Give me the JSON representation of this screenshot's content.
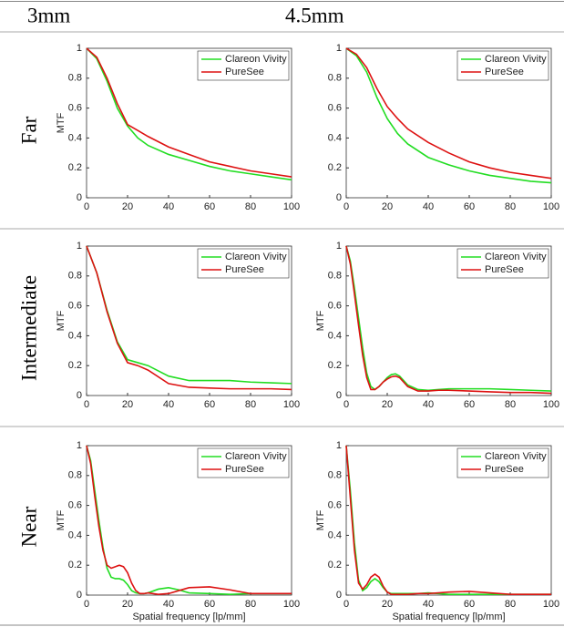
{
  "columns": [
    "3mm",
    "4.5mm"
  ],
  "rows": [
    "Far",
    "Intermediate",
    "Near"
  ],
  "chart_data": [
    {
      "type": "line",
      "ylabel": "MTF",
      "x": [
        0,
        5,
        10,
        15,
        20,
        25,
        30,
        40,
        50,
        60,
        70,
        80,
        90,
        100
      ],
      "series": [
        {
          "name": "Clareon Vivity",
          "color": "#22dd22",
          "values": [
            1,
            0.93,
            0.78,
            0.6,
            0.48,
            0.4,
            0.35,
            0.29,
            0.25,
            0.21,
            0.18,
            0.16,
            0.14,
            0.12
          ]
        },
        {
          "name": "PureSee",
          "color": "#dd1111",
          "values": [
            1,
            0.94,
            0.8,
            0.63,
            0.49,
            0.45,
            0.41,
            0.34,
            0.29,
            0.24,
            0.21,
            0.18,
            0.16,
            0.14
          ]
        }
      ],
      "xlim": [
        0,
        100
      ],
      "ylim": [
        0,
        1
      ],
      "xticks": [
        0,
        20,
        40,
        60,
        80,
        100
      ],
      "yticks": [
        0,
        0.2,
        0.4,
        0.6,
        0.8,
        1
      ],
      "legend": "upper right"
    },
    {
      "type": "line",
      "x": [
        0,
        5,
        10,
        15,
        20,
        25,
        30,
        40,
        50,
        60,
        70,
        80,
        90,
        100
      ],
      "series": [
        {
          "name": "Clareon Vivity",
          "color": "#22dd22",
          "values": [
            1,
            0.95,
            0.84,
            0.67,
            0.53,
            0.43,
            0.36,
            0.27,
            0.22,
            0.18,
            0.15,
            0.13,
            0.11,
            0.1
          ]
        },
        {
          "name": "PureSee",
          "color": "#dd1111",
          "values": [
            1,
            0.96,
            0.87,
            0.73,
            0.61,
            0.53,
            0.46,
            0.37,
            0.3,
            0.24,
            0.2,
            0.17,
            0.15,
            0.13
          ]
        }
      ],
      "xlim": [
        0,
        100
      ],
      "ylim": [
        0,
        1
      ],
      "xticks": [
        0,
        20,
        40,
        60,
        80,
        100
      ],
      "yticks": [
        0,
        0.2,
        0.4,
        0.6,
        0.8,
        1
      ],
      "legend": "upper right"
    },
    {
      "type": "line",
      "ylabel": "MTF",
      "x": [
        0,
        5,
        10,
        15,
        20,
        25,
        30,
        40,
        50,
        60,
        70,
        80,
        90,
        100
      ],
      "series": [
        {
          "name": "Clareon Vivity",
          "color": "#22dd22",
          "values": [
            1,
            0.82,
            0.57,
            0.36,
            0.24,
            0.22,
            0.2,
            0.13,
            0.1,
            0.1,
            0.1,
            0.09,
            0.085,
            0.08
          ]
        },
        {
          "name": "PureSee",
          "color": "#dd1111",
          "values": [
            1,
            0.82,
            0.56,
            0.35,
            0.22,
            0.2,
            0.17,
            0.08,
            0.055,
            0.05,
            0.045,
            0.045,
            0.045,
            0.04
          ]
        }
      ],
      "xlim": [
        0,
        100
      ],
      "ylim": [
        0,
        1
      ],
      "xticks": [
        0,
        20,
        40,
        60,
        80,
        100
      ],
      "yticks": [
        0,
        0.2,
        0.4,
        0.6,
        0.8,
        1
      ],
      "legend": "upper right"
    },
    {
      "type": "line",
      "ylabel": "MTF",
      "x": [
        0,
        2,
        4,
        6,
        8,
        10,
        12,
        14,
        16,
        18,
        20,
        22,
        24,
        26,
        28,
        30,
        35,
        40,
        45,
        50,
        60,
        70,
        80,
        90,
        100
      ],
      "series": [
        {
          "name": "Clareon Vivity",
          "color": "#22dd22",
          "values": [
            1,
            0.9,
            0.72,
            0.52,
            0.32,
            0.15,
            0.06,
            0.04,
            0.06,
            0.09,
            0.12,
            0.14,
            0.145,
            0.13,
            0.1,
            0.07,
            0.04,
            0.035,
            0.04,
            0.045,
            0.045,
            0.045,
            0.04,
            0.035,
            0.03
          ]
        },
        {
          "name": "PureSee",
          "color": "#dd1111",
          "values": [
            1,
            0.88,
            0.68,
            0.47,
            0.27,
            0.12,
            0.04,
            0.04,
            0.06,
            0.09,
            0.11,
            0.125,
            0.13,
            0.12,
            0.09,
            0.06,
            0.03,
            0.03,
            0.035,
            0.035,
            0.03,
            0.025,
            0.02,
            0.02,
            0.015
          ]
        }
      ],
      "xlim": [
        0,
        100
      ],
      "ylim": [
        0,
        1
      ],
      "xticks": [
        0,
        20,
        40,
        60,
        80,
        100
      ],
      "yticks": [
        0,
        0.2,
        0.4,
        0.6,
        0.8,
        1
      ],
      "legend": "upper right"
    },
    {
      "type": "line",
      "ylabel": "MTF",
      "xlabel": "Spatial frequency [lp/mm]",
      "x": [
        0,
        2,
        4,
        6,
        8,
        10,
        12,
        14,
        16,
        18,
        20,
        22,
        24,
        26,
        28,
        30,
        35,
        40,
        45,
        50,
        60,
        70,
        80,
        90,
        100
      ],
      "series": [
        {
          "name": "Clareon Vivity",
          "color": "#22dd22",
          "values": [
            1,
            0.9,
            0.7,
            0.5,
            0.32,
            0.18,
            0.12,
            0.11,
            0.11,
            0.1,
            0.07,
            0.03,
            0.015,
            0.01,
            0.01,
            0.015,
            0.04,
            0.05,
            0.035,
            0.015,
            0.01,
            0.005,
            0.01,
            0.01,
            0.01
          ]
        },
        {
          "name": "PureSee",
          "color": "#dd1111",
          "values": [
            1,
            0.88,
            0.66,
            0.46,
            0.3,
            0.2,
            0.18,
            0.19,
            0.2,
            0.19,
            0.15,
            0.08,
            0.03,
            0.01,
            0.01,
            0.015,
            0.005,
            0.01,
            0.03,
            0.05,
            0.055,
            0.035,
            0.01,
            0.01,
            0.01
          ]
        }
      ],
      "xlim": [
        0,
        100
      ],
      "ylim": [
        0,
        1
      ],
      "xticks": [
        0,
        20,
        40,
        60,
        80,
        100
      ],
      "yticks": [
        0,
        0.2,
        0.4,
        0.6,
        0.8,
        1
      ],
      "legend": "upper right"
    },
    {
      "type": "line",
      "ylabel": "MTF",
      "xlabel": "Spatial frequency [lp/mm]",
      "x": [
        0,
        2,
        4,
        6,
        8,
        10,
        12,
        14,
        16,
        18,
        20,
        22,
        24,
        26,
        28,
        30,
        35,
        40,
        45,
        50,
        60,
        70,
        80,
        90,
        100
      ],
      "series": [
        {
          "name": "Clareon Vivity",
          "color": "#22dd22",
          "values": [
            1,
            0.7,
            0.35,
            0.1,
            0.03,
            0.05,
            0.09,
            0.11,
            0.09,
            0.05,
            0.02,
            0.01,
            0.01,
            0.01,
            0.01,
            0.01,
            0.01,
            0.015,
            0.01,
            0.005,
            0.005,
            0.005,
            0.005,
            0.005,
            0.005
          ]
        },
        {
          "name": "PureSee",
          "color": "#dd1111",
          "values": [
            1,
            0.65,
            0.3,
            0.08,
            0.04,
            0.07,
            0.12,
            0.14,
            0.12,
            0.06,
            0.02,
            0.005,
            0.005,
            0.005,
            0.005,
            0.005,
            0.01,
            0.01,
            0.015,
            0.02,
            0.025,
            0.015,
            0.005,
            0.005,
            0.005
          ]
        }
      ],
      "xlim": [
        0,
        100
      ],
      "ylim": [
        0,
        1
      ],
      "xticks": [
        0,
        20,
        40,
        60,
        80,
        100
      ],
      "yticks": [
        0,
        0.2,
        0.4,
        0.6,
        0.8,
        1
      ],
      "legend": "upper right"
    }
  ]
}
